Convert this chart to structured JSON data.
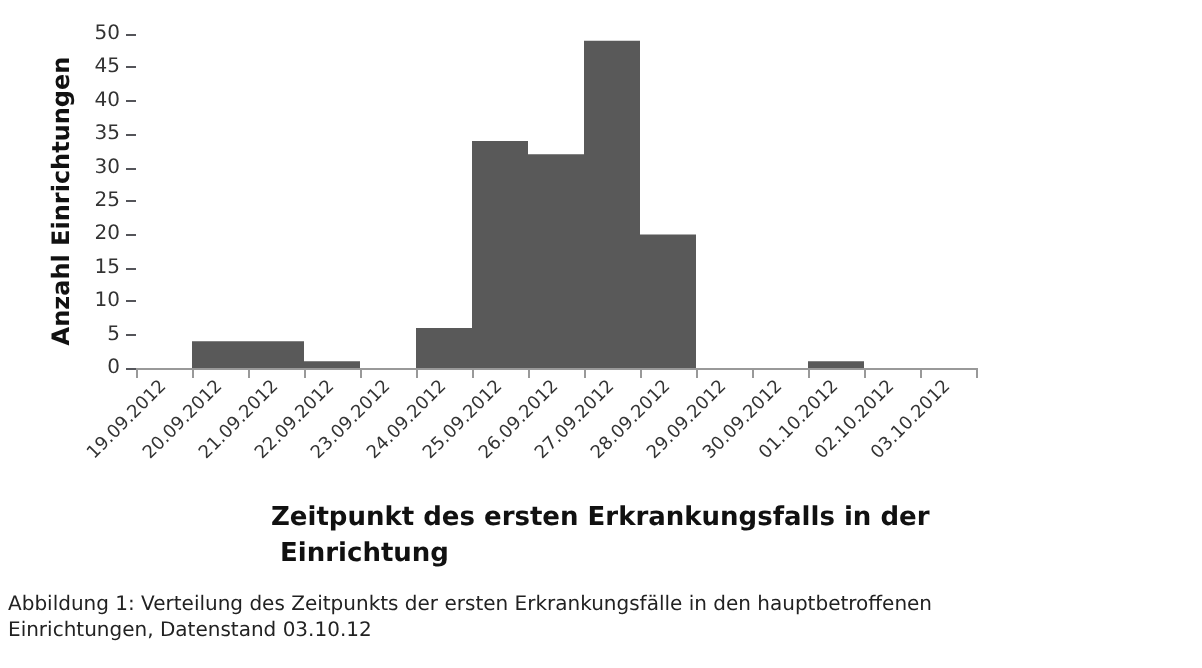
{
  "chart_data": {
    "type": "bar",
    "xlabel": "Zeitpunkt des ersten Erkrankungsfalls in der Einrichtung",
    "ylabel": "Anzahl Einrichtungen",
    "categories": [
      "19.09.2012",
      "20.09.2012",
      "21.09.2012",
      "22.09.2012",
      "23.09.2012",
      "24.09.2012",
      "25.09.2012",
      "26.09.2012",
      "27.09.2012",
      "28.09.2012",
      "29.09.2012",
      "30.09.2012",
      "01.10.2012",
      "02.10.2012",
      "03.10.2012"
    ],
    "values": [
      0,
      4,
      4,
      1,
      0,
      6,
      34,
      32,
      49,
      20,
      0,
      0,
      1,
      0,
      0
    ],
    "color": "#595959",
    "ylim": [
      0,
      50
    ],
    "yticks": [
      0,
      5,
      10,
      15,
      20,
      25,
      30,
      35,
      40,
      45,
      50
    ],
    "grid": false,
    "annotations": [
      "Abbildung 1: Verteilung des Zeitpunkts der ersten Erkrankungsfälle in den hauptbetroffenen Einrichtungen, Datenstand 03.10.12"
    ]
  }
}
